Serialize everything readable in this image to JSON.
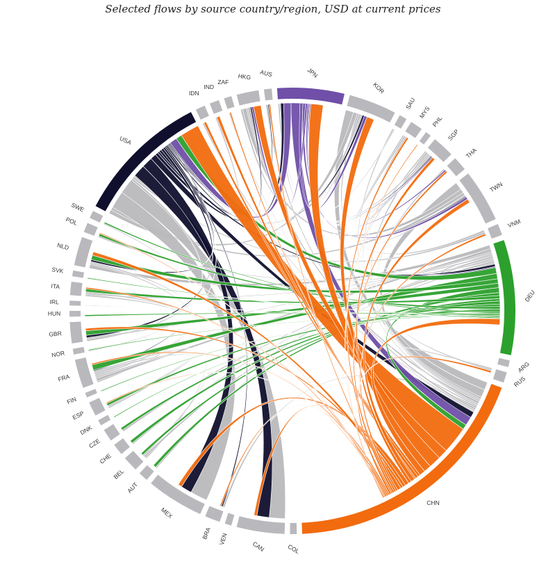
{
  "title": "Selected flows by source country/region, USD at current prices",
  "colors": {
    "CHN": "#f26b0e",
    "DEU": "#2ca02c",
    "USA": "#10102e",
    "JPN": "#6f4fa8",
    "other": "#b9b9bd",
    "background": "#ffffff"
  },
  "chart_data": {
    "type": "chord",
    "title": "Selected flows by source country/region, USD at current prices",
    "segments": [
      {
        "id": "USA",
        "label": "USA",
        "value": 14,
        "color": "USA"
      },
      {
        "id": "IDN",
        "label": "IDN",
        "value": 1,
        "color": "other"
      },
      {
        "id": "IND",
        "label": "IND",
        "value": 1,
        "color": "other"
      },
      {
        "id": "ZAF",
        "label": "ZAF",
        "value": 0.8,
        "color": "other"
      },
      {
        "id": "HKG",
        "label": "HKG",
        "value": 2.3,
        "color": "other"
      },
      {
        "id": "AUS",
        "label": "AUS",
        "value": 0.8,
        "color": "other"
      },
      {
        "id": "JPN",
        "label": "JPN",
        "value": 7,
        "color": "JPN"
      },
      {
        "id": "KOR",
        "label": "KOR",
        "value": 5,
        "color": "other"
      },
      {
        "id": "SAU",
        "label": "SAU",
        "value": 0.8,
        "color": "other"
      },
      {
        "id": "MYS",
        "label": "MYS",
        "value": 1.3,
        "color": "other"
      },
      {
        "id": "PHL",
        "label": "PHL",
        "value": 0.6,
        "color": "other"
      },
      {
        "id": "SGP",
        "label": "SGP",
        "value": 2.3,
        "color": "other"
      },
      {
        "id": "THA",
        "label": "THA",
        "value": 1.5,
        "color": "other"
      },
      {
        "id": "TWN",
        "label": "TWN",
        "value": 5.5,
        "color": "other"
      },
      {
        "id": "VNM",
        "label": "VNM",
        "value": 1.2,
        "color": "other"
      },
      {
        "id": "DEU",
        "label": "DEU",
        "value": 12,
        "color": "DEU"
      },
      {
        "id": "ARG",
        "label": "ARG",
        "value": 0.7,
        "color": "other"
      },
      {
        "id": "RUS",
        "label": "RUS",
        "value": 1.1,
        "color": "other"
      },
      {
        "id": "CHN",
        "label": "CHN",
        "value": 27,
        "color": "CHN"
      },
      {
        "id": "COL",
        "label": "COL",
        "value": 0.7,
        "color": "other"
      },
      {
        "id": "CAN",
        "label": "CAN",
        "value": 5,
        "color": "other"
      },
      {
        "id": "VEN",
        "label": "VEN",
        "value": 0.7,
        "color": "other"
      },
      {
        "id": "BRA",
        "label": "BRA",
        "value": 1.6,
        "color": "other"
      },
      {
        "id": "MEX",
        "label": "MEX",
        "value": 6,
        "color": "other"
      },
      {
        "id": "AUT",
        "label": "AUT",
        "value": 1,
        "color": "other"
      },
      {
        "id": "BEL",
        "label": "BEL",
        "value": 1.6,
        "color": "other"
      },
      {
        "id": "CHE",
        "label": "CHE",
        "value": 1.2,
        "color": "other"
      },
      {
        "id": "CZE",
        "label": "CZE",
        "value": 1.3,
        "color": "other"
      },
      {
        "id": "DNK",
        "label": "DNK",
        "value": 0.6,
        "color": "other"
      },
      {
        "id": "ESP",
        "label": "ESP",
        "value": 1.5,
        "color": "other"
      },
      {
        "id": "FIN",
        "label": "FIN",
        "value": 0.5,
        "color": "other"
      },
      {
        "id": "FRA",
        "label": "FRA",
        "value": 3,
        "color": "other"
      },
      {
        "id": "NOR",
        "label": "NOR",
        "value": 0.6,
        "color": "other"
      },
      {
        "id": "GBR",
        "label": "GBR",
        "value": 2.2,
        "color": "other"
      },
      {
        "id": "HUN",
        "label": "HUN",
        "value": 0.6,
        "color": "other"
      },
      {
        "id": "IRL",
        "label": "IRL",
        "value": 0.5,
        "color": "other"
      },
      {
        "id": "ITA",
        "label": "ITA",
        "value": 1.4,
        "color": "other"
      },
      {
        "id": "SVK",
        "label": "SVK",
        "value": 0.6,
        "color": "other"
      },
      {
        "id": "NLD",
        "label": "NLD",
        "value": 3,
        "color": "other"
      },
      {
        "id": "POL",
        "label": "POL",
        "value": 1,
        "color": "other"
      },
      {
        "id": "SWE",
        "label": "SWE",
        "value": 0.8,
        "color": "other"
      }
    ],
    "flows": [
      {
        "source": "CHN",
        "target": "USA",
        "value": 5.5
      },
      {
        "source": "CHN",
        "target": "HKG",
        "value": 2
      },
      {
        "source": "CHN",
        "target": "JPN",
        "value": 2.5
      },
      {
        "source": "CHN",
        "target": "KOR",
        "value": 1.5
      },
      {
        "source": "CHN",
        "target": "DEU",
        "value": 1.2
      },
      {
        "source": "CHN",
        "target": "IDN",
        "value": 0.5
      },
      {
        "source": "CHN",
        "target": "IND",
        "value": 0.6
      },
      {
        "source": "CHN",
        "target": "ZAF",
        "value": 0.3
      },
      {
        "source": "CHN",
        "target": "TWN",
        "value": 0.8
      },
      {
        "source": "CHN",
        "target": "SGP",
        "value": 0.6
      },
      {
        "source": "CHN",
        "target": "MEX",
        "value": 0.8
      },
      {
        "source": "CHN",
        "target": "CAN",
        "value": 0.6
      },
      {
        "source": "CHN",
        "target": "GBR",
        "value": 0.5
      },
      {
        "source": "CHN",
        "target": "NLD",
        "value": 0.7
      },
      {
        "source": "CHN",
        "target": "VNM",
        "value": 0.4
      },
      {
        "source": "CHN",
        "target": "MYS",
        "value": 0.4
      },
      {
        "source": "CHN",
        "target": "THA",
        "value": 0.4
      },
      {
        "source": "CHN",
        "target": "AUS",
        "value": 0.3
      },
      {
        "source": "CHN",
        "target": "RUS",
        "value": 0.4
      },
      {
        "source": "CHN",
        "target": "BRA",
        "value": 0.3
      },
      {
        "source": "CHN",
        "target": "FRA",
        "value": 0.3
      },
      {
        "source": "CHN",
        "target": "ITA",
        "value": 0.3
      },
      {
        "source": "CHN",
        "target": "ESP",
        "value": 0.2
      },
      {
        "source": "CHN",
        "target": "POL",
        "value": 0.2
      },
      {
        "source": "CHN",
        "target": "PHL",
        "value": 0.2
      },
      {
        "source": "DEU",
        "target": "USA",
        "value": 1.2
      },
      {
        "source": "DEU",
        "target": "FRA",
        "value": 1.1
      },
      {
        "source": "DEU",
        "target": "NLD",
        "value": 0.9
      },
      {
        "source": "DEU",
        "target": "GBR",
        "value": 0.9
      },
      {
        "source": "DEU",
        "target": "CHN",
        "value": 1.0
      },
      {
        "source": "DEU",
        "target": "AUT",
        "value": 0.6
      },
      {
        "source": "DEU",
        "target": "ITA",
        "value": 0.6
      },
      {
        "source": "DEU",
        "target": "BEL",
        "value": 0.5
      },
      {
        "source": "DEU",
        "target": "CHE",
        "value": 0.6
      },
      {
        "source": "DEU",
        "target": "CZE",
        "value": 0.5
      },
      {
        "source": "DEU",
        "target": "POL",
        "value": 0.5
      },
      {
        "source": "DEU",
        "target": "ESP",
        "value": 0.5
      },
      {
        "source": "DEU",
        "target": "SWE",
        "value": 0.3
      },
      {
        "source": "DEU",
        "target": "DNK",
        "value": 0.2
      },
      {
        "source": "DEU",
        "target": "HUN",
        "value": 0.3
      },
      {
        "source": "DEU",
        "target": "FIN",
        "value": 0.2
      },
      {
        "source": "DEU",
        "target": "NOR",
        "value": 0.2
      },
      {
        "source": "DEU",
        "target": "SVK",
        "value": 0.2
      },
      {
        "source": "DEU",
        "target": "IRL",
        "value": 0.1
      },
      {
        "source": "USA",
        "target": "CAN",
        "value": 2.5
      },
      {
        "source": "USA",
        "target": "MEX",
        "value": 2.2
      },
      {
        "source": "USA",
        "target": "CHN",
        "value": 1.2
      },
      {
        "source": "USA",
        "target": "JPN",
        "value": 0.6
      },
      {
        "source": "USA",
        "target": "KOR",
        "value": 0.4
      },
      {
        "source": "USA",
        "target": "DEU",
        "value": 0.5
      },
      {
        "source": "USA",
        "target": "GBR",
        "value": 0.5
      },
      {
        "source": "USA",
        "target": "NLD",
        "value": 0.4
      },
      {
        "source": "USA",
        "target": "BRA",
        "value": 0.3
      },
      {
        "source": "USA",
        "target": "HKG",
        "value": 0.3
      },
      {
        "source": "USA",
        "target": "SGP",
        "value": 0.2
      },
      {
        "source": "USA",
        "target": "TWN",
        "value": 0.2
      },
      {
        "source": "USA",
        "target": "FRA",
        "value": 0.2
      },
      {
        "source": "USA",
        "target": "AUS",
        "value": 0.2
      },
      {
        "source": "JPN",
        "target": "USA",
        "value": 1.5
      },
      {
        "source": "JPN",
        "target": "CHN",
        "value": 1.8
      },
      {
        "source": "JPN",
        "target": "KOR",
        "value": 0.6
      },
      {
        "source": "JPN",
        "target": "TWN",
        "value": 0.5
      },
      {
        "source": "JPN",
        "target": "HKG",
        "value": 0.4
      },
      {
        "source": "JPN",
        "target": "THA",
        "value": 0.3
      },
      {
        "source": "JPN",
        "target": "SGP",
        "value": 0.2
      },
      {
        "source": "JPN",
        "target": "DEU",
        "value": 0.2
      },
      {
        "source": "KOR",
        "target": "CHN",
        "value": 1.6
      },
      {
        "source": "KOR",
        "target": "USA",
        "value": 0.8
      },
      {
        "source": "KOR",
        "target": "VNM",
        "value": 0.4
      },
      {
        "source": "KOR",
        "target": "HKG",
        "value": 0.4
      },
      {
        "source": "KOR",
        "target": "JPN",
        "value": 0.3
      },
      {
        "source": "TWN",
        "target": "CHN",
        "value": 1.6
      },
      {
        "source": "TWN",
        "target": "HKG",
        "value": 0.8
      },
      {
        "source": "TWN",
        "target": "USA",
        "value": 0.6
      },
      {
        "source": "TWN",
        "target": "SGP",
        "value": 0.3
      },
      {
        "source": "MEX",
        "target": "USA",
        "value": 3.5
      },
      {
        "source": "CAN",
        "target": "USA",
        "value": 3.2
      },
      {
        "source": "NLD",
        "target": "DEU",
        "value": 0.8
      },
      {
        "source": "NLD",
        "target": "BEL",
        "value": 0.3
      },
      {
        "source": "NLD",
        "target": "FRA",
        "value": 0.3
      },
      {
        "source": "FRA",
        "target": "DEU",
        "value": 0.6
      },
      {
        "source": "FRA",
        "target": "ESP",
        "value": 0.3
      },
      {
        "source": "FRA",
        "target": "ITA",
        "value": 0.3
      },
      {
        "source": "GBR",
        "target": "USA",
        "value": 0.4
      },
      {
        "source": "GBR",
        "target": "DEU",
        "value": 0.3
      },
      {
        "source": "SGP",
        "target": "CHN",
        "value": 0.4
      },
      {
        "source": "SGP",
        "target": "HKG",
        "value": 0.3
      },
      {
        "source": "SGP",
        "target": "MYS",
        "value": 0.3
      },
      {
        "source": "MYS",
        "target": "SGP",
        "value": 0.3
      },
      {
        "source": "MYS",
        "target": "CHN",
        "value": 0.3
      },
      {
        "source": "THA",
        "target": "CHN",
        "value": 0.3
      },
      {
        "source": "VNM",
        "target": "USA",
        "value": 0.4
      },
      {
        "source": "HKG",
        "target": "CHN",
        "value": 0.5
      },
      {
        "source": "SAU",
        "target": "CHN",
        "value": 0.3
      },
      {
        "source": "SAU",
        "target": "JPN",
        "value": 0.2
      },
      {
        "source": "RUS",
        "target": "CHN",
        "value": 0.3
      },
      {
        "source": "RUS",
        "target": "DEU",
        "value": 0.3
      },
      {
        "source": "BRA",
        "target": "CHN",
        "value": 0.4
      },
      {
        "source": "AUS",
        "target": "CHN",
        "value": 0.4
      },
      {
        "source": "IND",
        "target": "USA",
        "value": 0.3
      },
      {
        "source": "IDN",
        "target": "CHN",
        "value": 0.3
      },
      {
        "source": "ITA",
        "target": "DEU",
        "value": 0.3
      },
      {
        "source": "ITA",
        "target": "FRA",
        "value": 0.3
      },
      {
        "source": "BEL",
        "target": "DEU",
        "value": 0.4
      },
      {
        "source": "BEL",
        "target": "FRA",
        "value": 0.3
      },
      {
        "source": "ESP",
        "target": "FRA",
        "value": 0.3
      },
      {
        "source": "CHE",
        "target": "DEU",
        "value": 0.3
      },
      {
        "source": "POL",
        "target": "DEU",
        "value": 0.3
      },
      {
        "source": "CZE",
        "target": "DEU",
        "value": 0.4
      },
      {
        "source": "AUT",
        "target": "DEU",
        "value": 0.3
      },
      {
        "source": "SWE",
        "target": "NOR",
        "value": 0.2
      },
      {
        "source": "ZAF",
        "target": "CHN",
        "value": 0.2
      }
    ]
  }
}
